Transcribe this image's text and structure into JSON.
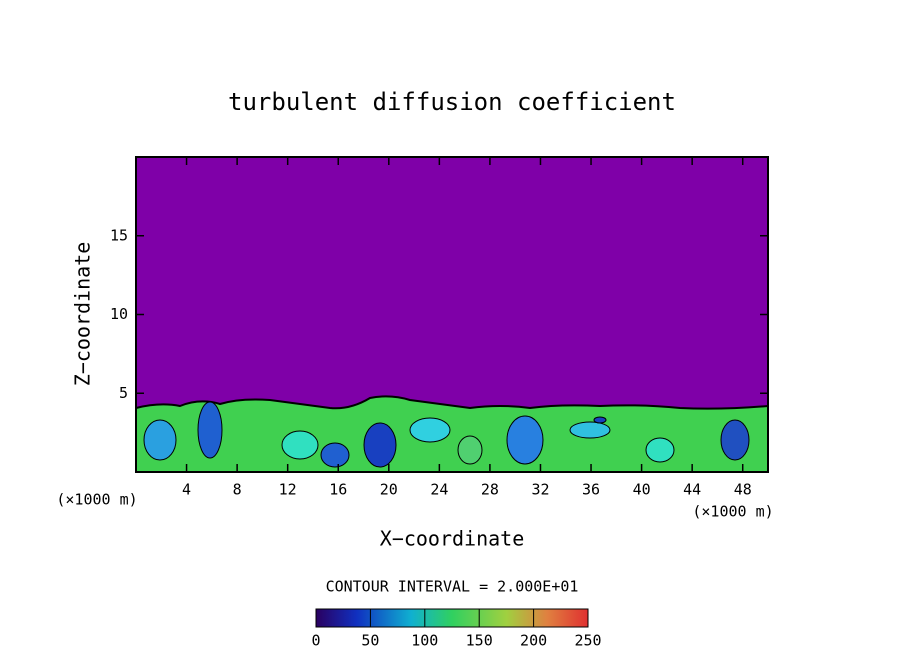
{
  "chart_data": {
    "type": "contour",
    "title": "turbulent diffusion coefficient",
    "xlabel": "X−coordinate",
    "ylabel": "Z−coordinate",
    "x_unit_left": "(×1000 m)",
    "x_unit_right": "(×1000 m)",
    "contour_interval": "CONTOUR INTERVAL = 2.000E+01",
    "xlim": [
      0,
      50
    ],
    "xticks": [
      4,
      8,
      12,
      16,
      20,
      24,
      28,
      32,
      36,
      40,
      44,
      48
    ],
    "ylim": [
      0,
      20
    ],
    "yticks": [
      5,
      10,
      15
    ],
    "colorbar_lim": [
      0,
      250
    ],
    "colorbar_ticks": [
      0,
      50,
      100,
      150,
      200,
      250
    ],
    "background_color": "#7f00a8"
  }
}
